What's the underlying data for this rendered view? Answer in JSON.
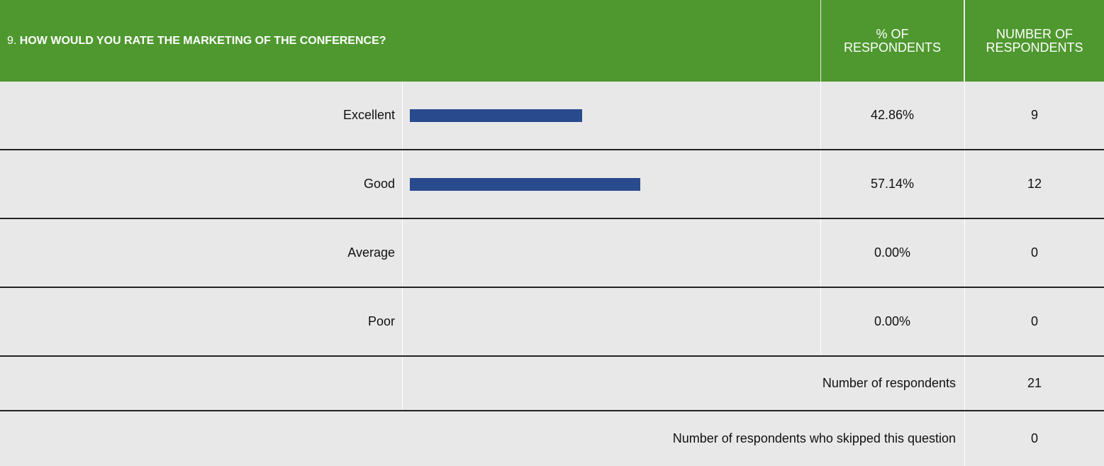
{
  "header": {
    "number": "9.",
    "title": "HOW WOULD YOU RATE THE MARKETING OF THE CONFERENCE?",
    "percent_column": "% OF RESPONDENTS",
    "count_column": "NUMBER OF RESPONDENTS"
  },
  "table": {
    "rows": [
      {
        "label": "Excellent",
        "percent": 42.86,
        "percent_label": "42.86%",
        "count": 9
      },
      {
        "label": "Good",
        "percent": 57.14,
        "percent_label": "57.14%",
        "count": 12
      },
      {
        "label": "Average",
        "percent": 0,
        "percent_label": "0.00%",
        "count": 0
      },
      {
        "label": "Poor",
        "percent": 0,
        "percent_label": "0.00%",
        "count": 0
      }
    ]
  },
  "summary": {
    "respondents_label": "Number of respondents",
    "respondents": 21,
    "skipped_label": "Number of respondents who skipped this question",
    "skipped": 0
  }
}
